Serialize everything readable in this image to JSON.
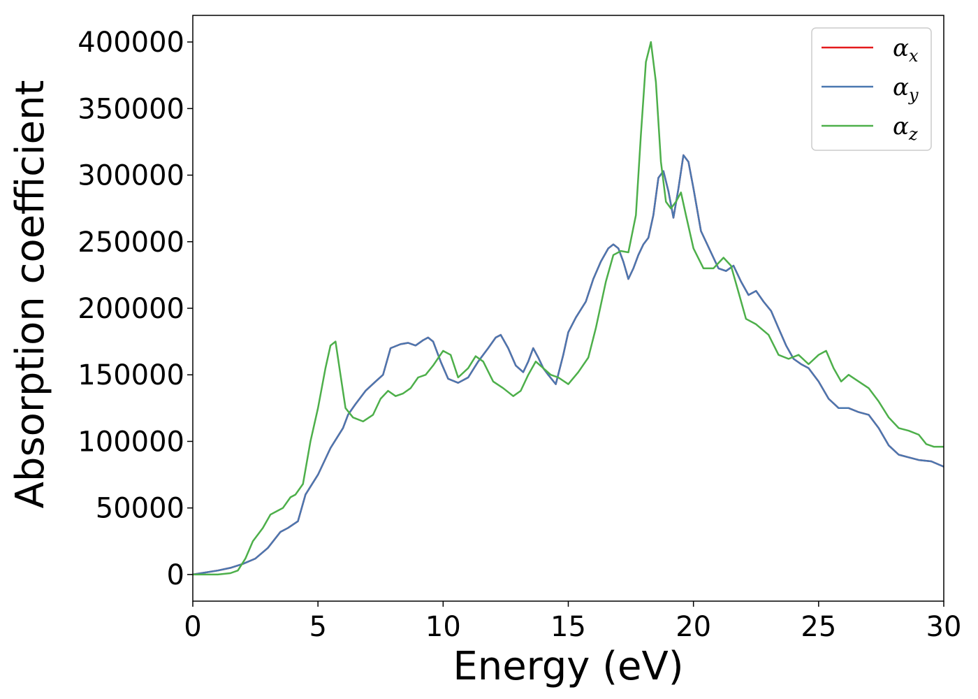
{
  "chart_data": {
    "type": "line",
    "xlabel": "Energy (eV)",
    "ylabel": "Absorption coefficient",
    "xlim": [
      0,
      30
    ],
    "ylim": [
      -20000,
      420000
    ],
    "xticks": [
      0,
      5,
      10,
      15,
      20,
      25,
      30
    ],
    "yticks": [
      0,
      50000,
      100000,
      150000,
      200000,
      250000,
      300000,
      350000,
      400000
    ],
    "grid": false,
    "legend_position": "top-right",
    "series": [
      {
        "name": "αx",
        "symbol": "α",
        "subscript": "x",
        "color": "#e41a1c",
        "x": [
          0,
          1,
          1.5,
          2,
          2.5,
          3,
          3.5,
          3.8,
          4.2,
          4.5,
          5,
          5.5,
          6,
          6.2,
          6.5,
          6.9,
          7.3,
          7.6,
          7.9,
          8.3,
          8.6,
          8.9,
          9.2,
          9.4,
          9.6,
          9.9,
          10.2,
          10.6,
          11,
          11.4,
          11.8,
          12.1,
          12.3,
          12.6,
          12.9,
          13.2,
          13.4,
          13.6,
          13.8,
          14,
          14.2,
          14.5,
          14.8,
          15,
          15.3,
          15.7,
          16,
          16.3,
          16.6,
          16.8,
          17,
          17.2,
          17.4,
          17.6,
          17.8,
          18,
          18.2,
          18.4,
          18.6,
          18.8,
          19,
          19.2,
          19.4,
          19.6,
          19.8,
          20,
          20.3,
          20.7,
          21,
          21.3,
          21.6,
          21.9,
          22.2,
          22.5,
          22.8,
          23.1,
          23.4,
          23.7,
          24,
          24.3,
          24.6,
          25,
          25.4,
          25.8,
          26.2,
          26.6,
          27,
          27.4,
          27.8,
          28.2,
          28.6,
          29,
          29.5,
          30
        ],
        "values": [
          0,
          3000,
          5000,
          8000,
          12000,
          20000,
          32000,
          35000,
          40000,
          60000,
          75000,
          95000,
          110000,
          120000,
          128000,
          138000,
          145000,
          150000,
          170000,
          173000,
          174000,
          172000,
          176000,
          178000,
          175000,
          160000,
          147000,
          144000,
          148000,
          160000,
          170000,
          178000,
          180000,
          170000,
          157000,
          152000,
          160000,
          170000,
          163000,
          155000,
          150000,
          143000,
          165000,
          182000,
          193000,
          205000,
          222000,
          235000,
          245000,
          248000,
          245000,
          235000,
          222000,
          230000,
          240000,
          248000,
          253000,
          270000,
          298000,
          303000,
          288000,
          268000,
          290000,
          315000,
          310000,
          290000,
          258000,
          242000,
          230000,
          228000,
          232000,
          220000,
          210000,
          213000,
          205000,
          198000,
          185000,
          172000,
          162000,
          158000,
          155000,
          145000,
          132000,
          125000,
          125000,
          122000,
          120000,
          110000,
          97000,
          90000,
          88000,
          86000,
          85000,
          81000
        ]
      },
      {
        "name": "αy",
        "symbol": "α",
        "subscript": "y",
        "color": "#4a77b0",
        "x": [
          0,
          1,
          1.5,
          2,
          2.5,
          3,
          3.5,
          3.8,
          4.2,
          4.5,
          5,
          5.5,
          6,
          6.2,
          6.5,
          6.9,
          7.3,
          7.6,
          7.9,
          8.3,
          8.6,
          8.9,
          9.2,
          9.4,
          9.6,
          9.9,
          10.2,
          10.6,
          11,
          11.4,
          11.8,
          12.1,
          12.3,
          12.6,
          12.9,
          13.2,
          13.4,
          13.6,
          13.8,
          14,
          14.2,
          14.5,
          14.8,
          15,
          15.3,
          15.7,
          16,
          16.3,
          16.6,
          16.8,
          17,
          17.2,
          17.4,
          17.6,
          17.8,
          18,
          18.2,
          18.4,
          18.6,
          18.8,
          19,
          19.2,
          19.4,
          19.6,
          19.8,
          20,
          20.3,
          20.7,
          21,
          21.3,
          21.6,
          21.9,
          22.2,
          22.5,
          22.8,
          23.1,
          23.4,
          23.7,
          24,
          24.3,
          24.6,
          25,
          25.4,
          25.8,
          26.2,
          26.6,
          27,
          27.4,
          27.8,
          28.2,
          28.6,
          29,
          29.5,
          30
        ],
        "values": [
          0,
          3000,
          5000,
          8000,
          12000,
          20000,
          32000,
          35000,
          40000,
          60000,
          75000,
          95000,
          110000,
          120000,
          128000,
          138000,
          145000,
          150000,
          170000,
          173000,
          174000,
          172000,
          176000,
          178000,
          175000,
          160000,
          147000,
          144000,
          148000,
          160000,
          170000,
          178000,
          180000,
          170000,
          157000,
          152000,
          160000,
          170000,
          163000,
          155000,
          150000,
          143000,
          165000,
          182000,
          193000,
          205000,
          222000,
          235000,
          245000,
          248000,
          245000,
          235000,
          222000,
          230000,
          240000,
          248000,
          253000,
          270000,
          298000,
          303000,
          288000,
          268000,
          290000,
          315000,
          310000,
          290000,
          258000,
          242000,
          230000,
          228000,
          232000,
          220000,
          210000,
          213000,
          205000,
          198000,
          185000,
          172000,
          162000,
          158000,
          155000,
          145000,
          132000,
          125000,
          125000,
          122000,
          120000,
          110000,
          97000,
          90000,
          88000,
          86000,
          85000,
          81000
        ]
      },
      {
        "name": "αz",
        "symbol": "α",
        "subscript": "z",
        "color": "#4daf4a",
        "x": [
          0,
          1,
          1.5,
          1.8,
          2.1,
          2.4,
          2.8,
          3.1,
          3.4,
          3.6,
          3.9,
          4.1,
          4.4,
          4.7,
          5,
          5.3,
          5.5,
          5.7,
          5.9,
          6.1,
          6.4,
          6.8,
          7.2,
          7.5,
          7.8,
          8.1,
          8.4,
          8.7,
          9,
          9.3,
          9.6,
          10,
          10.3,
          10.6,
          11,
          11.3,
          11.6,
          12,
          12.4,
          12.8,
          13.1,
          13.4,
          13.7,
          14,
          14.3,
          14.6,
          15,
          15.4,
          15.8,
          16.1,
          16.5,
          16.8,
          17.1,
          17.4,
          17.7,
          17.9,
          18.1,
          18.3,
          18.5,
          18.7,
          18.9,
          19.1,
          19.3,
          19.5,
          19.7,
          20,
          20.4,
          20.8,
          21.2,
          21.5,
          21.8,
          22.1,
          22.5,
          23,
          23.4,
          23.8,
          24.2,
          24.6,
          25,
          25.3,
          25.6,
          25.9,
          26.2,
          26.6,
          27,
          27.4,
          27.8,
          28.2,
          28.6,
          29,
          29.3,
          29.6,
          30
        ],
        "values": [
          0,
          0,
          1000,
          3000,
          12000,
          25000,
          35000,
          45000,
          48000,
          50000,
          58000,
          60000,
          68000,
          100000,
          125000,
          155000,
          172000,
          175000,
          150000,
          125000,
          118000,
          115000,
          120000,
          132000,
          138000,
          134000,
          136000,
          140000,
          148000,
          150000,
          157000,
          168000,
          165000,
          148000,
          155000,
          164000,
          160000,
          145000,
          140000,
          134000,
          138000,
          150000,
          160000,
          155000,
          150000,
          148000,
          143000,
          152000,
          163000,
          185000,
          220000,
          240000,
          243000,
          242000,
          270000,
          330000,
          385000,
          400000,
          370000,
          310000,
          280000,
          275000,
          280000,
          287000,
          270000,
          245000,
          230000,
          230000,
          238000,
          232000,
          212000,
          192000,
          188000,
          180000,
          165000,
          162000,
          165000,
          158000,
          165000,
          168000,
          155000,
          145000,
          150000,
          145000,
          140000,
          130000,
          118000,
          110000,
          108000,
          105000,
          98000,
          96000,
          96000
        ]
      }
    ]
  }
}
